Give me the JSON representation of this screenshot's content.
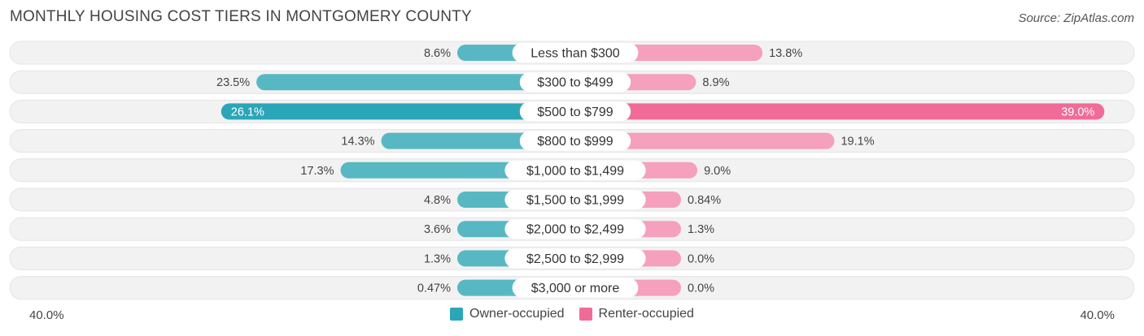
{
  "title": "MONTHLY HOUSING COST TIERS IN MONTGOMERY COUNTY",
  "source": "Source: ZipAtlas.com",
  "colors": {
    "owner": "#57b8c4",
    "owner_strong": "#2aa6b8",
    "renter": "#f5a0bd",
    "renter_strong": "#f06b97",
    "track": "#f2f2f2"
  },
  "legend": {
    "owner_label": "Owner-occupied",
    "renter_label": "Renter-occupied"
  },
  "axis": {
    "left_label": "40.0%",
    "right_label": "40.0%"
  },
  "chart_data": {
    "type": "bar",
    "orientation": "horizontal-diverging",
    "categories": [
      "Less than $300",
      "$300 to $499",
      "$500 to $799",
      "$800 to $999",
      "$1,000 to $1,499",
      "$1,500 to $1,999",
      "$2,000 to $2,499",
      "$2,500 to $2,999",
      "$3,000 or more"
    ],
    "series": [
      {
        "name": "Owner-occupied",
        "values": [
          8.6,
          23.5,
          26.1,
          14.3,
          17.3,
          4.8,
          3.6,
          1.3,
          0.47
        ],
        "labels": [
          "8.6%",
          "23.5%",
          "26.1%",
          "14.3%",
          "17.3%",
          "4.8%",
          "3.6%",
          "1.3%",
          "0.47%"
        ]
      },
      {
        "name": "Renter-occupied",
        "values": [
          13.8,
          8.9,
          39.0,
          19.1,
          9.0,
          0.84,
          1.3,
          0.0,
          0.0
        ],
        "labels": [
          "13.8%",
          "8.9%",
          "39.0%",
          "19.1%",
          "9.0%",
          "0.84%",
          "1.3%",
          "0.0%",
          "0.0%"
        ]
      }
    ],
    "xlim": [
      -40,
      40
    ],
    "legend_position": "bottom-center",
    "grid": false
  }
}
